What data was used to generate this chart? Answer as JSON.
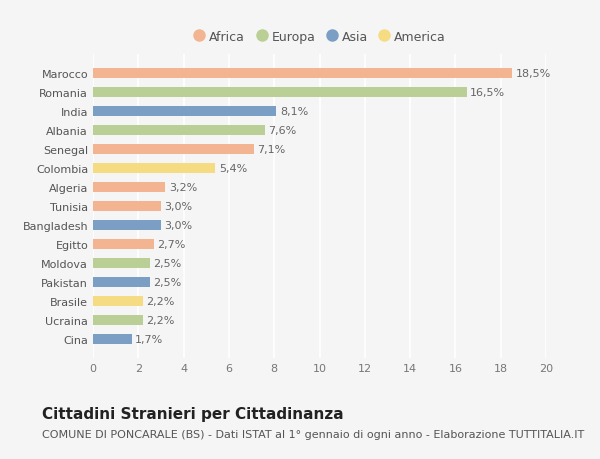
{
  "countries": [
    "Marocco",
    "Romania",
    "India",
    "Albania",
    "Senegal",
    "Colombia",
    "Algeria",
    "Tunisia",
    "Bangladesh",
    "Egitto",
    "Moldova",
    "Pakistan",
    "Brasile",
    "Ucraina",
    "Cina"
  ],
  "values": [
    18.5,
    16.5,
    8.1,
    7.6,
    7.1,
    5.4,
    3.2,
    3.0,
    3.0,
    2.7,
    2.5,
    2.5,
    2.2,
    2.2,
    1.7
  ],
  "labels": [
    "18,5%",
    "16,5%",
    "8,1%",
    "7,6%",
    "7,1%",
    "5,4%",
    "3,2%",
    "3,0%",
    "3,0%",
    "2,7%",
    "2,5%",
    "2,5%",
    "2,2%",
    "2,2%",
    "1,7%"
  ],
  "continents": [
    "Africa",
    "Europa",
    "Asia",
    "Europa",
    "Africa",
    "America",
    "Africa",
    "Africa",
    "Asia",
    "Africa",
    "Europa",
    "Asia",
    "America",
    "Europa",
    "Asia"
  ],
  "continent_colors": {
    "Africa": "#F2B491",
    "Europa": "#BACF95",
    "Asia": "#7B9FC4",
    "America": "#F5DC82"
  },
  "legend_order": [
    "Africa",
    "Europa",
    "Asia",
    "America"
  ],
  "xlim": [
    0,
    20
  ],
  "xticks": [
    0,
    2,
    4,
    6,
    8,
    10,
    12,
    14,
    16,
    18,
    20
  ],
  "title": "Cittadini Stranieri per Cittadinanza",
  "subtitle": "COMUNE DI PONCARALE (BS) - Dati ISTAT al 1° gennaio di ogni anno - Elaborazione TUTTITALIA.IT",
  "background_color": "#f5f5f5",
  "grid_color": "#ffffff",
  "bar_height": 0.55,
  "title_fontsize": 11,
  "subtitle_fontsize": 8,
  "label_fontsize": 8,
  "tick_fontsize": 8,
  "legend_fontsize": 9
}
